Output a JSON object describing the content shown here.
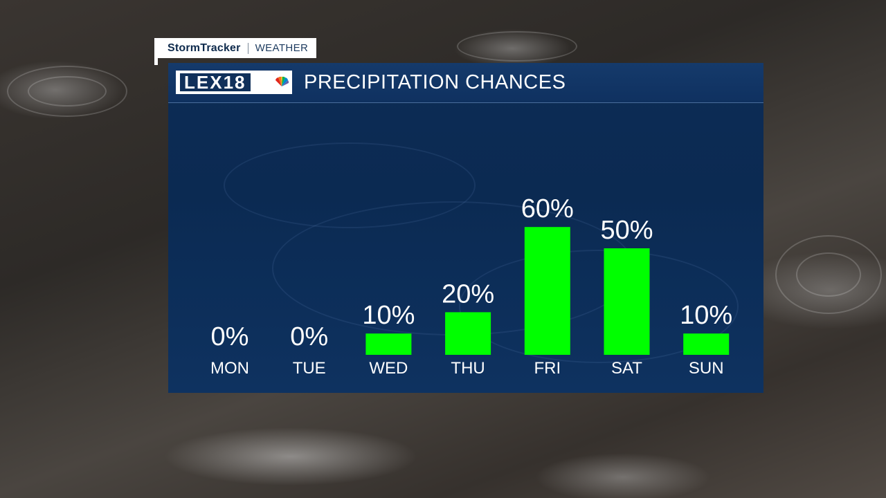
{
  "brand": {
    "primary": "StormTracker",
    "secondary": "WEATHER",
    "station_logo": "LEX18",
    "network_icon": "peacock-icon"
  },
  "panel": {
    "title": "PRECIPITATION CHANCES"
  },
  "colors": {
    "bar": "#00ff00",
    "panel": "#0c2c55",
    "text": "#ffffff"
  },
  "chart_data": {
    "type": "bar",
    "title": "PRECIPITATION CHANCES",
    "categories": [
      "MON",
      "TUE",
      "WED",
      "THU",
      "FRI",
      "SAT",
      "SUN"
    ],
    "values": [
      0,
      0,
      10,
      20,
      60,
      50,
      10
    ],
    "value_labels": [
      "0%",
      "0%",
      "10%",
      "20%",
      "60%",
      "50%",
      "10%"
    ],
    "unit": "%",
    "ylim": [
      0,
      100
    ],
    "grid": false,
    "legend": "none"
  }
}
